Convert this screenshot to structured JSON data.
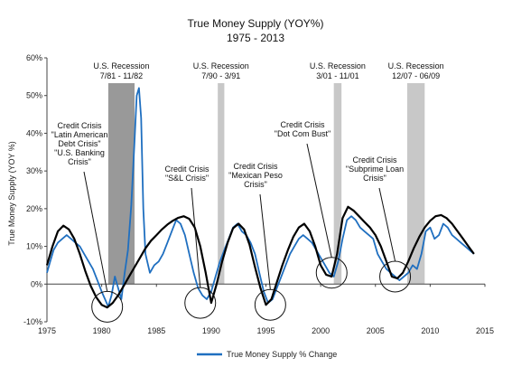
{
  "chart_data": {
    "type": "line",
    "title": "True Money Supply (YOY%)",
    "subtitle": "1975 - 2013",
    "xlabel": "",
    "ylabel": "True Money Supply  (YOY %)",
    "xlim": [
      1975,
      2015
    ],
    "ylim": [
      -10,
      60
    ],
    "x_ticks": [
      1975,
      1980,
      1985,
      1990,
      1995,
      2000,
      2005,
      2010,
      2015
    ],
    "y_ticks": [
      -10,
      0,
      10,
      20,
      30,
      40,
      50,
      60
    ],
    "y_tick_labels": [
      "-10%",
      "0%",
      "10%",
      "20%",
      "30%",
      "40%",
      "50%",
      "60%"
    ],
    "x_tick_labels": [
      "1975",
      "1980",
      "1985",
      "1990",
      "1995",
      "2000",
      "2005",
      "2010",
      "2015"
    ],
    "legend": {
      "position": "bottom",
      "label": "True Money Supply % Change"
    },
    "colors": {
      "series": "#1f6fc0",
      "trend": "#000000",
      "recession": "#c8c8c8",
      "recession_dark": "#999999"
    },
    "recessions": [
      {
        "label_line1": "U.S. Recession",
        "label_line2": "7/81 - 11/82",
        "start": 1980.6,
        "end": 1983.0,
        "shade": "dark"
      },
      {
        "label_line1": "U.S. Recession",
        "label_line2": "7/90 - 3/91",
        "start": 1990.6,
        "end": 1991.2,
        "shade": "light"
      },
      {
        "label_line1": "U.S. Recession",
        "label_line2": "3/01 - 11/01",
        "start": 2001.2,
        "end": 2001.9,
        "shade": "light"
      },
      {
        "label_line1": "U.S. Recession",
        "label_line2": "12/07 - 06/09",
        "start": 2007.9,
        "end": 2009.5,
        "shade": "light"
      }
    ],
    "crises": [
      {
        "lines": [
          "Credit Crisis",
          "\"Latin American",
          "Debt Crisis\"",
          "\"U.S. Banking",
          "Crisis\""
        ],
        "x": 1980.5,
        "y": -6
      },
      {
        "lines": [
          "Credit Crisis",
          "\"S&L Crisis\""
        ],
        "x": 1989.0,
        "y": -5
      },
      {
        "lines": [
          "Credit Crisis",
          "\"Mexican Peso",
          "Crisis\""
        ],
        "x": 1995.4,
        "y": -5.5
      },
      {
        "lines": [
          "Credit Crisis",
          "\"Dot Com Bust\""
        ],
        "x": 2001.0,
        "y": 3
      },
      {
        "lines": [
          "Credit Crisis",
          "\"Subprime Loan",
          "Crisis\""
        ],
        "x": 2006.8,
        "y": 2
      }
    ],
    "series": [
      {
        "name": "True Money Supply % Change",
        "x": [
          1975.0,
          1975.3,
          1975.6,
          1976.0,
          1976.4,
          1976.8,
          1977.2,
          1977.6,
          1978.0,
          1978.4,
          1978.8,
          1979.2,
          1979.6,
          1980.0,
          1980.3,
          1980.6,
          1980.9,
          1981.2,
          1981.5,
          1981.8,
          1982.1,
          1982.4,
          1982.7,
          1983.0,
          1983.2,
          1983.4,
          1983.6,
          1983.8,
          1984.0,
          1984.4,
          1984.8,
          1985.2,
          1985.6,
          1986.0,
          1986.4,
          1986.8,
          1987.2,
          1987.6,
          1988.0,
          1988.4,
          1988.8,
          1989.2,
          1989.6,
          1990.0,
          1990.4,
          1990.8,
          1991.2,
          1991.6,
          1992.0,
          1992.4,
          1992.8,
          1993.2,
          1993.6,
          1994.0,
          1994.4,
          1994.8,
          1995.2,
          1995.6,
          1996.0,
          1996.4,
          1996.8,
          1997.2,
          1997.6,
          1998.0,
          1998.4,
          1998.8,
          1999.2,
          1999.6,
          2000.0,
          2000.4,
          2000.8,
          2001.2,
          2001.6,
          2002.0,
          2002.4,
          2002.8,
          2003.2,
          2003.6,
          2004.0,
          2004.4,
          2004.8,
          2005.2,
          2005.6,
          2006.0,
          2006.4,
          2006.8,
          2007.2,
          2007.6,
          2008.0,
          2008.4,
          2008.8,
          2009.2,
          2009.6,
          2010.0,
          2010.4,
          2010.8,
          2011.2,
          2011.6,
          2012.0,
          2012.4,
          2012.8,
          2013.2,
          2013.6,
          2014.0
        ],
        "values": [
          3,
          6,
          9,
          11,
          12,
          13,
          12,
          11,
          10,
          8,
          6,
          4,
          1,
          -2,
          -4,
          -6,
          -3,
          2,
          -1,
          -4,
          3,
          9,
          21,
          38,
          50,
          52,
          44,
          20,
          8,
          3,
          5,
          6,
          8,
          11,
          14,
          17,
          16,
          13,
          8,
          3,
          -1,
          -3,
          -4,
          -2,
          2,
          6,
          9,
          12,
          15,
          16,
          14,
          13,
          11,
          8,
          3,
          -2,
          -5,
          -4,
          -1,
          2,
          5,
          8,
          10,
          12,
          13,
          12,
          11,
          9,
          7,
          5,
          3,
          2,
          6,
          12,
          17,
          18,
          17,
          15,
          14,
          13,
          12,
          8,
          6,
          4,
          3,
          2,
          1,
          2,
          3,
          5,
          4,
          8,
          14,
          15,
          12,
          13,
          16,
          15,
          13,
          12,
          11,
          10,
          9,
          8
        ]
      },
      {
        "name": "",
        "x": [
          1975.0,
          1975.5,
          1976.0,
          1976.5,
          1977.0,
          1977.5,
          1978.0,
          1978.5,
          1979.0,
          1979.5,
          1980.0,
          1980.5,
          1981.0,
          1981.5,
          1982.0,
          1982.5,
          1983.0,
          1983.5,
          1984.0,
          1984.5,
          1985.0,
          1985.5,
          1986.0,
          1986.5,
          1987.0,
          1987.5,
          1988.0,
          1988.5,
          1989.0,
          1989.5,
          1990.0,
          1990.5,
          1991.0,
          1991.5,
          1992.0,
          1992.5,
          1993.0,
          1993.5,
          1994.0,
          1994.5,
          1995.0,
          1995.5,
          1996.0,
          1996.5,
          1997.0,
          1997.5,
          1998.0,
          1998.5,
          1999.0,
          1999.5,
          2000.0,
          2000.5,
          2001.0,
          2001.5,
          2002.0,
          2002.5,
          2003.0,
          2003.5,
          2004.0,
          2004.5,
          2005.0,
          2005.5,
          2006.0,
          2006.5,
          2007.0,
          2007.5,
          2008.0,
          2008.5,
          2009.0,
          2009.5,
          2010.0,
          2010.5,
          2011.0,
          2011.5,
          2012.0,
          2012.5,
          2013.0,
          2013.5,
          2014.0
        ],
        "values": [
          5,
          10,
          14,
          15.5,
          14.5,
          12,
          8,
          3.5,
          -0.5,
          -3.5,
          -5.5,
          -6.2,
          -5,
          -3,
          -0.5,
          2,
          4.5,
          7,
          9.5,
          11.5,
          13,
          14.5,
          15.8,
          16.8,
          17.6,
          18,
          17.3,
          15,
          10,
          3,
          -5,
          0,
          6,
          11,
          14.8,
          16,
          14.5,
          10.5,
          4.5,
          -1,
          -5.5,
          -4,
          0.5,
          5,
          9,
          12.5,
          15,
          16,
          14,
          10,
          5,
          2.5,
          2,
          8,
          17.5,
          20.5,
          19.5,
          18,
          16.5,
          15,
          13,
          10,
          6,
          2,
          1.5,
          3,
          6,
          9.5,
          12.5,
          15,
          16.8,
          18,
          18.3,
          17.5,
          16,
          14,
          12,
          10,
          8
        ]
      }
    ]
  }
}
